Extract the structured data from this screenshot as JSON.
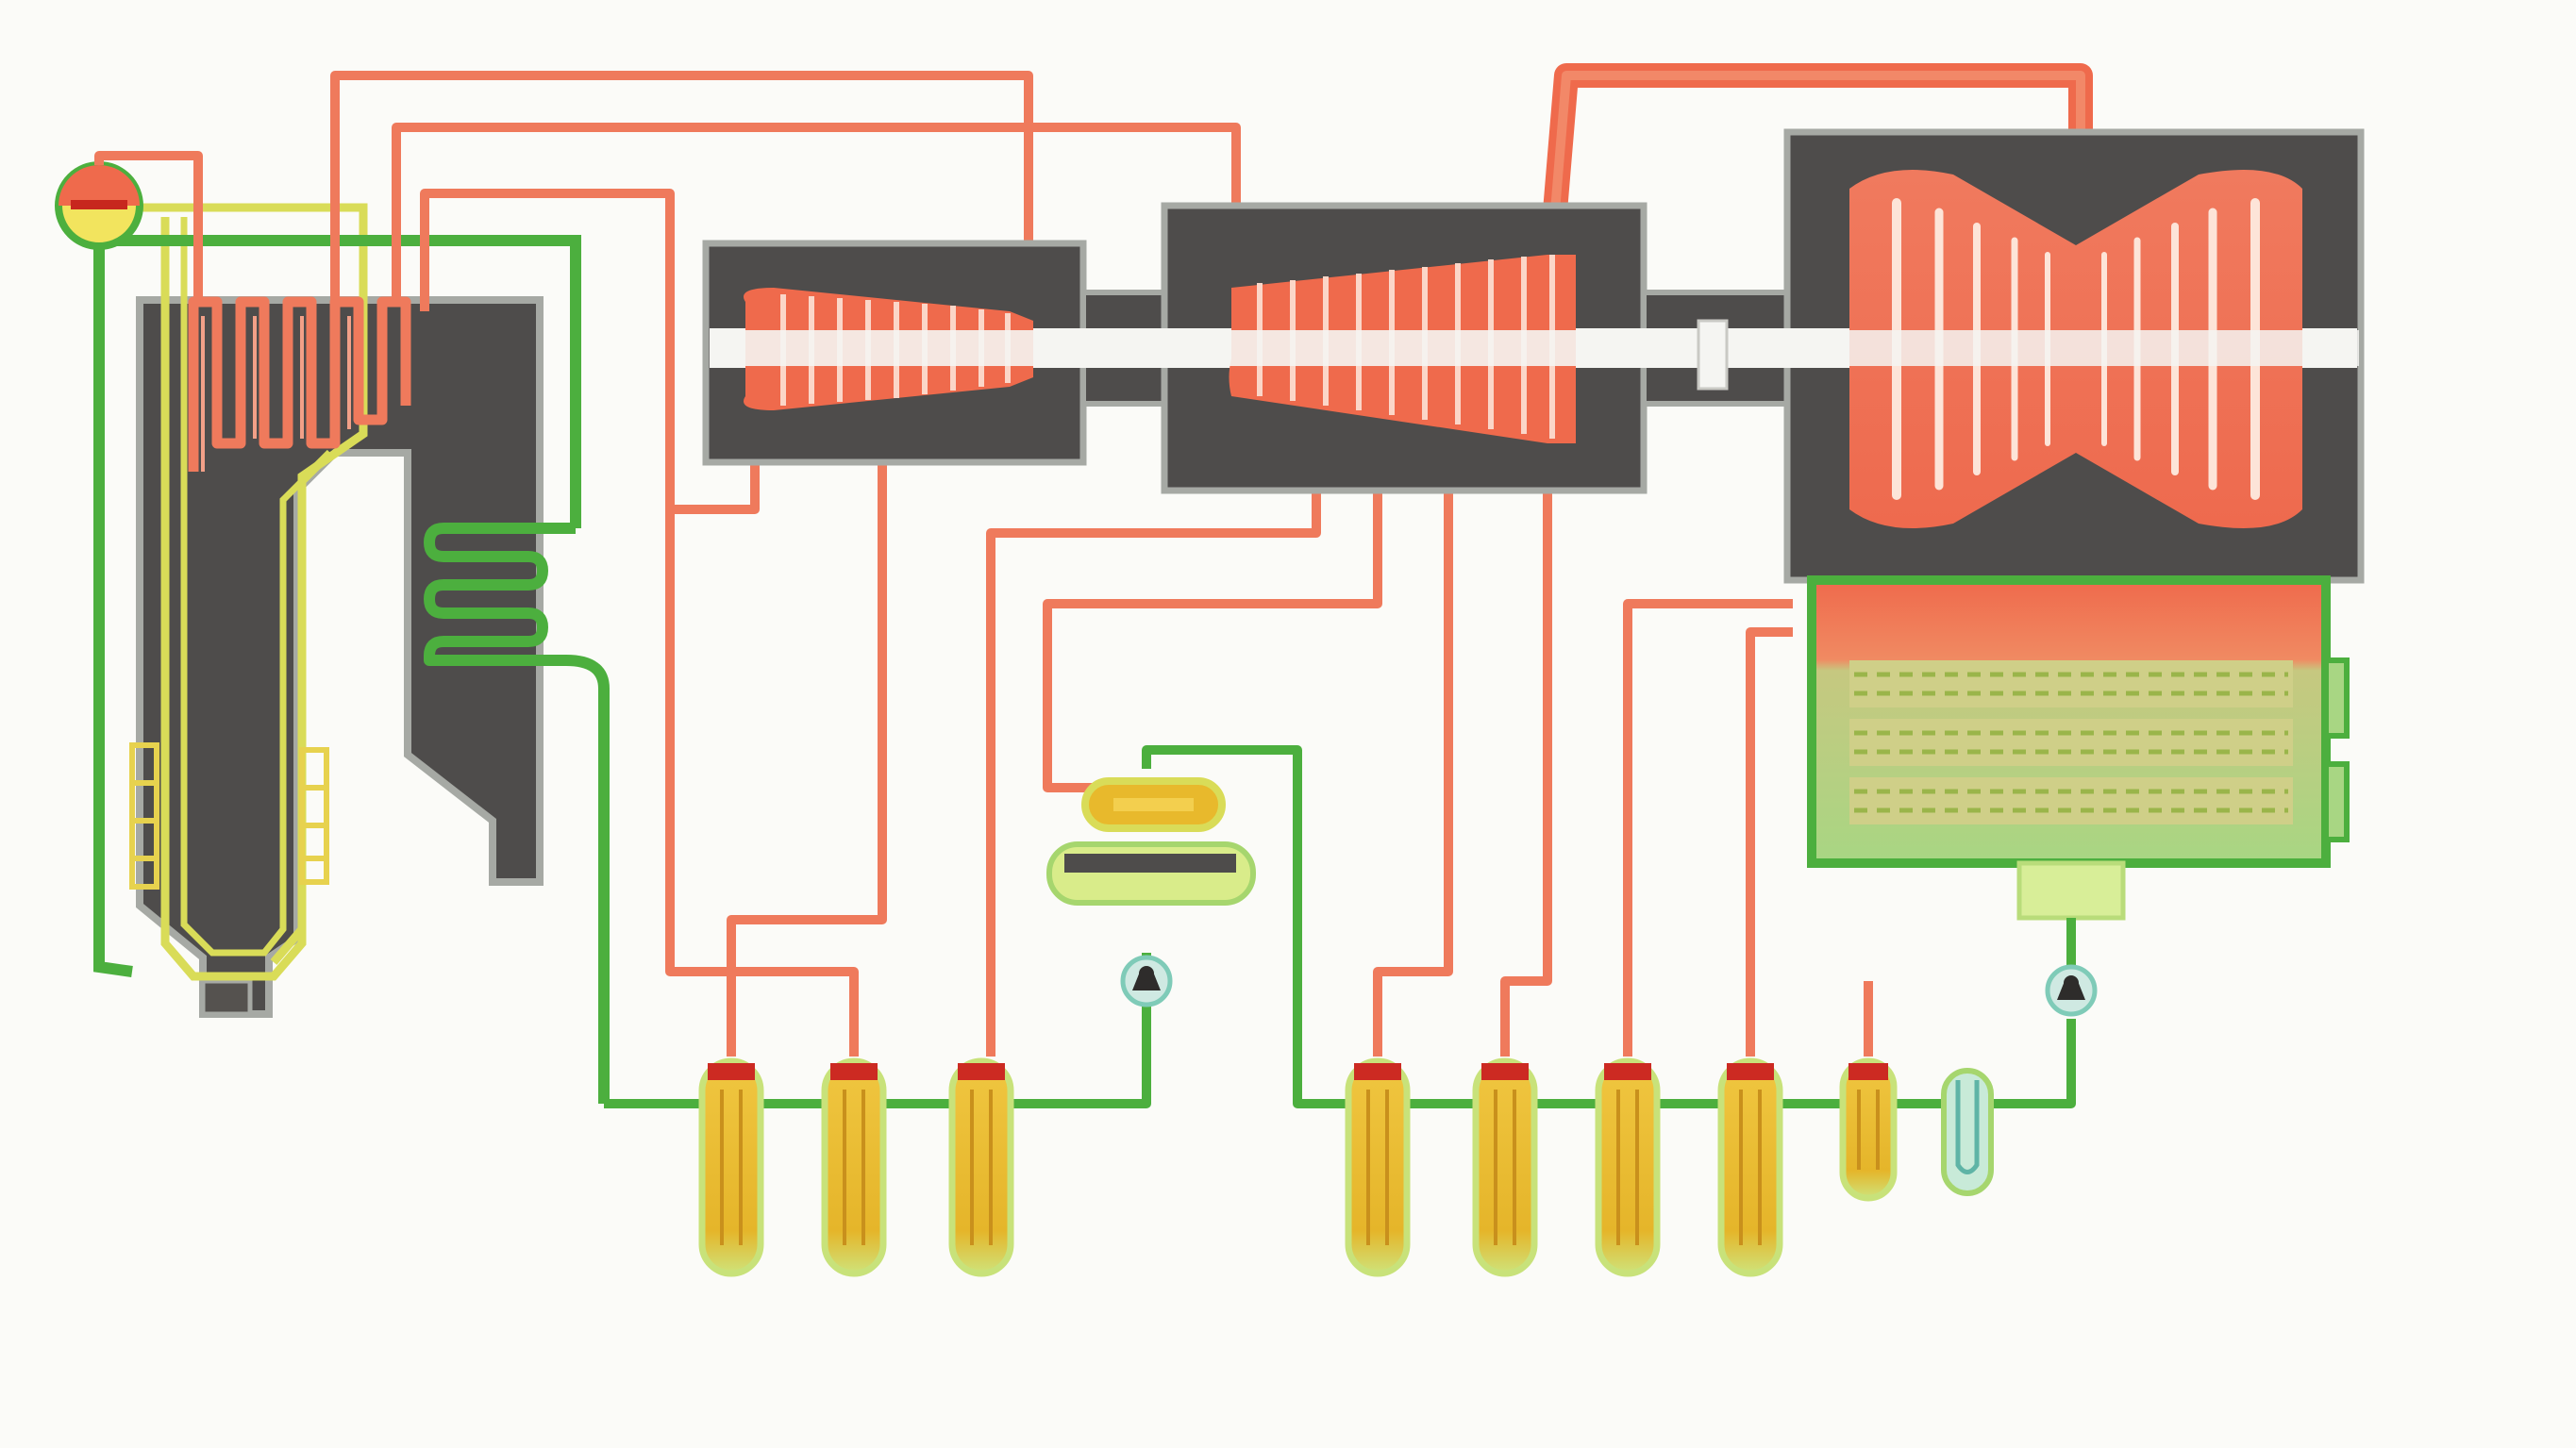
{
  "diagram": {
    "kind": "steam-power-plant-schematic",
    "colors": {
      "background": "#fbfbf8",
      "steam": "#ef7a5c",
      "steam_dark": "#e2583a",
      "feedwater": "#4caf3e",
      "feedwater_dark": "#2f8f2a",
      "condensate_yellow": "#d9dc58",
      "casing": "#4e4c4b",
      "casing_edge": "#a6a9a4",
      "heater_fill": "#e8b92c",
      "heater_cap": "#cc2a22",
      "shaft": "#f5f5f2"
    },
    "components": [
      {
        "id": "boiler-drum",
        "label": ""
      },
      {
        "id": "boiler-furnace",
        "label": ""
      },
      {
        "id": "superheater",
        "label": ""
      },
      {
        "id": "economizer",
        "label": ""
      },
      {
        "id": "hp-turbine",
        "label": ""
      },
      {
        "id": "ip-turbine",
        "label": ""
      },
      {
        "id": "lp-turbine",
        "label": ""
      },
      {
        "id": "condenser",
        "label": ""
      },
      {
        "id": "deaerator",
        "label": ""
      },
      {
        "id": "feed-pump",
        "label": ""
      },
      {
        "id": "condensate-pump",
        "label": ""
      },
      {
        "id": "hp-heaters",
        "count": 3
      },
      {
        "id": "lp-heaters",
        "count": 4
      },
      {
        "id": "small-heaters",
        "count": 2
      }
    ]
  }
}
